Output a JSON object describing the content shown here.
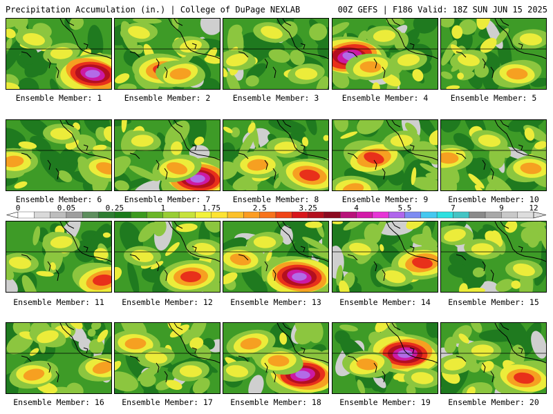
{
  "header": {
    "left": "Precipitation Accumulation (in.) | College of DuPage NEXLAB",
    "right": "00Z GEFS | F186 Valid: 18Z SUN JUN 15 2025"
  },
  "caption_prefix": "Ensemble Member: ",
  "members": [
    1,
    2,
    3,
    4,
    5,
    6,
    7,
    8,
    9,
    10,
    11,
    12,
    13,
    14,
    15,
    16,
    17,
    18,
    19,
    20
  ],
  "colorbar": {
    "tick_labels": [
      "0",
      "0.05",
      "0.25",
      "1",
      "1.75",
      "2.5",
      "3.25",
      "4",
      "5.5",
      "7",
      "9",
      "12"
    ],
    "colors": [
      "#ffffff",
      "#d9d9d9",
      "#bdbdbd",
      "#9e9e9e",
      "#5e8e5e",
      "#2e7d32",
      "#1b7b1b",
      "#3c9a1e",
      "#6bb629",
      "#98cd35",
      "#c6e23a",
      "#f2f23a",
      "#fde333",
      "#fcc12a",
      "#fb9c22",
      "#f7731c",
      "#ef4417",
      "#d8151b",
      "#b30f1d",
      "#8c0a20",
      "#b8117a",
      "#d21aa8",
      "#e635d6",
      "#b065ec",
      "#7d8cf2",
      "#45c8f0",
      "#2ee0e0",
      "#44c4c4",
      "#8a8a8a",
      "#a8a8a8",
      "#c8c8c8",
      "#dddddd"
    ]
  },
  "palette": {
    "dark_green": "#1f7a1f",
    "mid_green": "#3e9b27",
    "light_green": "#8cc63f",
    "yellow": "#ecec3a",
    "orange": "#f6a021",
    "red": "#e8301a",
    "dark_red": "#b40f1f",
    "magenta": "#cc1aa3",
    "violet": "#b36be8",
    "grey": "#a9a9a9",
    "light_grey": "#cfcfcf"
  }
}
